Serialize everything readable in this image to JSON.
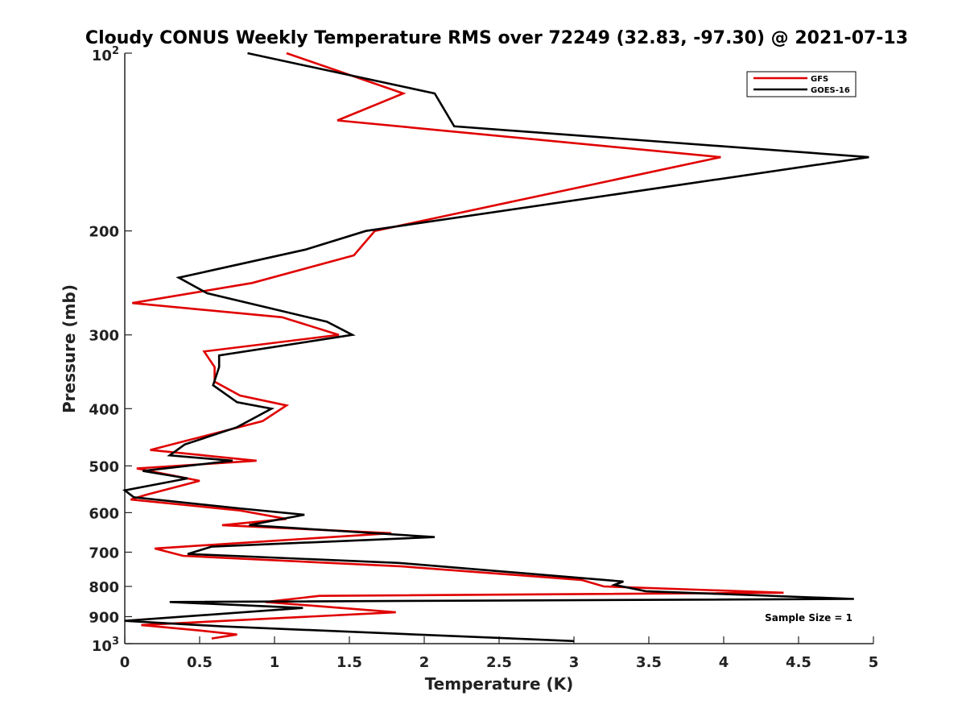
{
  "chart_data": {
    "type": "line",
    "title": "Cloudy CONUS Weekly Temperature RMS over 72249 (32.83, -97.30) @ 2021-07-13",
    "xlabel": "Temperature (K)",
    "ylabel": "Pressure (mb)",
    "xlim": [
      0,
      5
    ],
    "ylim": [
      100,
      1000
    ],
    "y_scale": "log",
    "y_reversed": true,
    "x_ticks": [
      "0",
      "0.5",
      "1",
      "1.5",
      "2",
      "2.5",
      "3",
      "3.5",
      "4",
      "4.5",
      "5"
    ],
    "y_ticks": [
      {
        "value": 100,
        "base": "10",
        "exp": "2"
      },
      {
        "value": 200,
        "label": "200"
      },
      {
        "value": 300,
        "label": "300"
      },
      {
        "value": 400,
        "label": "400"
      },
      {
        "value": 500,
        "label": "500"
      },
      {
        "value": 600,
        "label": "600"
      },
      {
        "value": 700,
        "label": "700"
      },
      {
        "value": 800,
        "label": "800"
      },
      {
        "value": 900,
        "label": "900"
      },
      {
        "value": 1000,
        "base": "10",
        "exp": "3"
      }
    ],
    "grid": false,
    "legend_position": "top-right",
    "annotation": "Sample Size = 1",
    "series": [
      {
        "name": "GFS",
        "color": "#e00000",
        "points": [
          [
            1.08,
            100
          ],
          [
            1.86,
            117
          ],
          [
            1.42,
            130
          ],
          [
            3.98,
            150
          ],
          [
            1.67,
            200
          ],
          [
            1.53,
            220
          ],
          [
            0.85,
            245
          ],
          [
            0.05,
            265
          ],
          [
            1.05,
            280
          ],
          [
            1.43,
            300
          ],
          [
            0.53,
            320
          ],
          [
            0.6,
            340
          ],
          [
            0.6,
            360
          ],
          [
            0.77,
            380
          ],
          [
            1.08,
            395
          ],
          [
            0.92,
            420
          ],
          [
            0.17,
            470
          ],
          [
            0.88,
            490
          ],
          [
            0.08,
            505
          ],
          [
            0.5,
            530
          ],
          [
            0.14,
            560
          ],
          [
            0.04,
            570
          ],
          [
            0.77,
            595
          ],
          [
            1.08,
            615
          ],
          [
            0.65,
            630
          ],
          [
            1.78,
            650
          ],
          [
            0.2,
            690
          ],
          [
            0.39,
            710
          ],
          [
            1.85,
            740
          ],
          [
            3.05,
            780
          ],
          [
            3.2,
            800
          ],
          [
            4.4,
            820
          ],
          [
            1.3,
            830
          ],
          [
            0.94,
            850
          ],
          [
            1.81,
            885
          ],
          [
            0.11,
            930
          ],
          [
            0.5,
            950
          ],
          [
            0.75,
            965
          ],
          [
            0.58,
            980
          ]
        ]
      },
      {
        "name": "GOES-16",
        "color": "#000000",
        "points": [
          [
            0.82,
            100
          ],
          [
            2.07,
            117
          ],
          [
            2.2,
            133
          ],
          [
            4.97,
            150
          ],
          [
            1.61,
            200
          ],
          [
            1.21,
            215
          ],
          [
            0.36,
            240
          ],
          [
            0.55,
            255
          ],
          [
            1.35,
            285
          ],
          [
            1.52,
            300
          ],
          [
            0.63,
            325
          ],
          [
            0.63,
            340
          ],
          [
            0.59,
            365
          ],
          [
            0.75,
            390
          ],
          [
            0.98,
            400
          ],
          [
            0.75,
            430
          ],
          [
            0.4,
            460
          ],
          [
            0.3,
            480
          ],
          [
            0.72,
            490
          ],
          [
            0.12,
            510
          ],
          [
            0.42,
            525
          ],
          [
            0.0,
            550
          ],
          [
            0.06,
            565
          ],
          [
            0.76,
            590
          ],
          [
            1.2,
            605
          ],
          [
            0.83,
            630
          ],
          [
            2.07,
            660
          ],
          [
            0.58,
            685
          ],
          [
            0.42,
            705
          ],
          [
            1.83,
            730
          ],
          [
            3.33,
            785
          ],
          [
            3.27,
            795
          ],
          [
            3.48,
            815
          ],
          [
            4.87,
            840
          ],
          [
            0.3,
            850
          ],
          [
            1.19,
            870
          ],
          [
            0.0,
            915
          ],
          [
            0.65,
            935
          ],
          [
            3.0,
            990
          ]
        ]
      }
    ]
  }
}
